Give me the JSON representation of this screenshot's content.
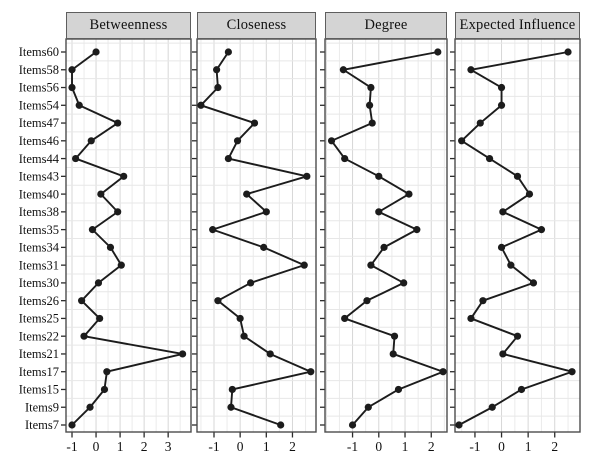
{
  "figure": {
    "background": "#ffffff",
    "strip_fill": "#d4d4d4",
    "strip_border": "#5e5e5e",
    "panel_border": "#4c4c4c",
    "grid_major": "#d7d7d7",
    "grid_minor": "#ebebeb",
    "grid_horizontal": "#e7e7e7",
    "tick_color": "#2b2b2b",
    "text_color": "#111111",
    "line_color": "#1c1c1c",
    "point_color": "#1c1c1c"
  },
  "chart_data": {
    "type": "line",
    "orientation": "horizontal",
    "grid": true,
    "legend_position": "none",
    "categories": [
      "Items60",
      "Items58",
      "Items56",
      "Items54",
      "Items47",
      "Items46",
      "Items44",
      "Items43",
      "Items40",
      "Items38",
      "Items35",
      "Items34",
      "Items31",
      "Items30",
      "Items26",
      "Items25",
      "Items22",
      "Items21",
      "Items17",
      "Items15",
      "Items9",
      "Items7"
    ],
    "panels": [
      {
        "title": "Betweenness",
        "xticks": [
          -1,
          0,
          1,
          2,
          3
        ],
        "xlim": [
          -1.25,
          3.95
        ],
        "values": [
          0.0,
          -1.0,
          -1.0,
          -0.7,
          0.9,
          -0.2,
          -0.85,
          1.15,
          0.2,
          0.9,
          -0.15,
          0.6,
          1.05,
          0.1,
          -0.6,
          0.15,
          -0.5,
          3.6,
          0.45,
          0.35,
          -0.25,
          -1.0
        ]
      },
      {
        "title": "Closeness",
        "xticks": [
          -1,
          0,
          1,
          2
        ],
        "xlim": [
          -1.65,
          2.9
        ],
        "values": [
          -0.45,
          -0.9,
          -0.85,
          -1.5,
          0.55,
          -0.1,
          -0.45,
          2.55,
          0.25,
          1.0,
          -1.05,
          0.9,
          2.45,
          0.4,
          -0.85,
          0.0,
          0.15,
          1.15,
          2.7,
          -0.3,
          -0.35,
          1.55
        ]
      },
      {
        "title": "Degree",
        "xticks": [
          -1,
          0,
          1,
          2
        ],
        "xlim": [
          -2.05,
          2.6
        ],
        "values": [
          2.25,
          -1.35,
          -0.3,
          -0.35,
          -0.25,
          -1.8,
          -1.3,
          0.0,
          1.15,
          0.0,
          1.45,
          0.2,
          -0.3,
          0.95,
          -0.45,
          -1.3,
          0.6,
          0.55,
          2.45,
          0.75,
          -0.4,
          -1.0
        ]
      },
      {
        "title": "Expected Influence",
        "xticks": [
          -1,
          0,
          1,
          2
        ],
        "xlim": [
          -1.75,
          2.95
        ],
        "values": [
          2.5,
          -1.15,
          0.0,
          0.0,
          -0.8,
          -1.5,
          -0.45,
          0.6,
          1.05,
          0.05,
          1.5,
          0.0,
          0.35,
          1.2,
          -0.7,
          -1.15,
          0.6,
          0.05,
          2.65,
          0.75,
          -0.35,
          -1.6
        ]
      }
    ]
  }
}
